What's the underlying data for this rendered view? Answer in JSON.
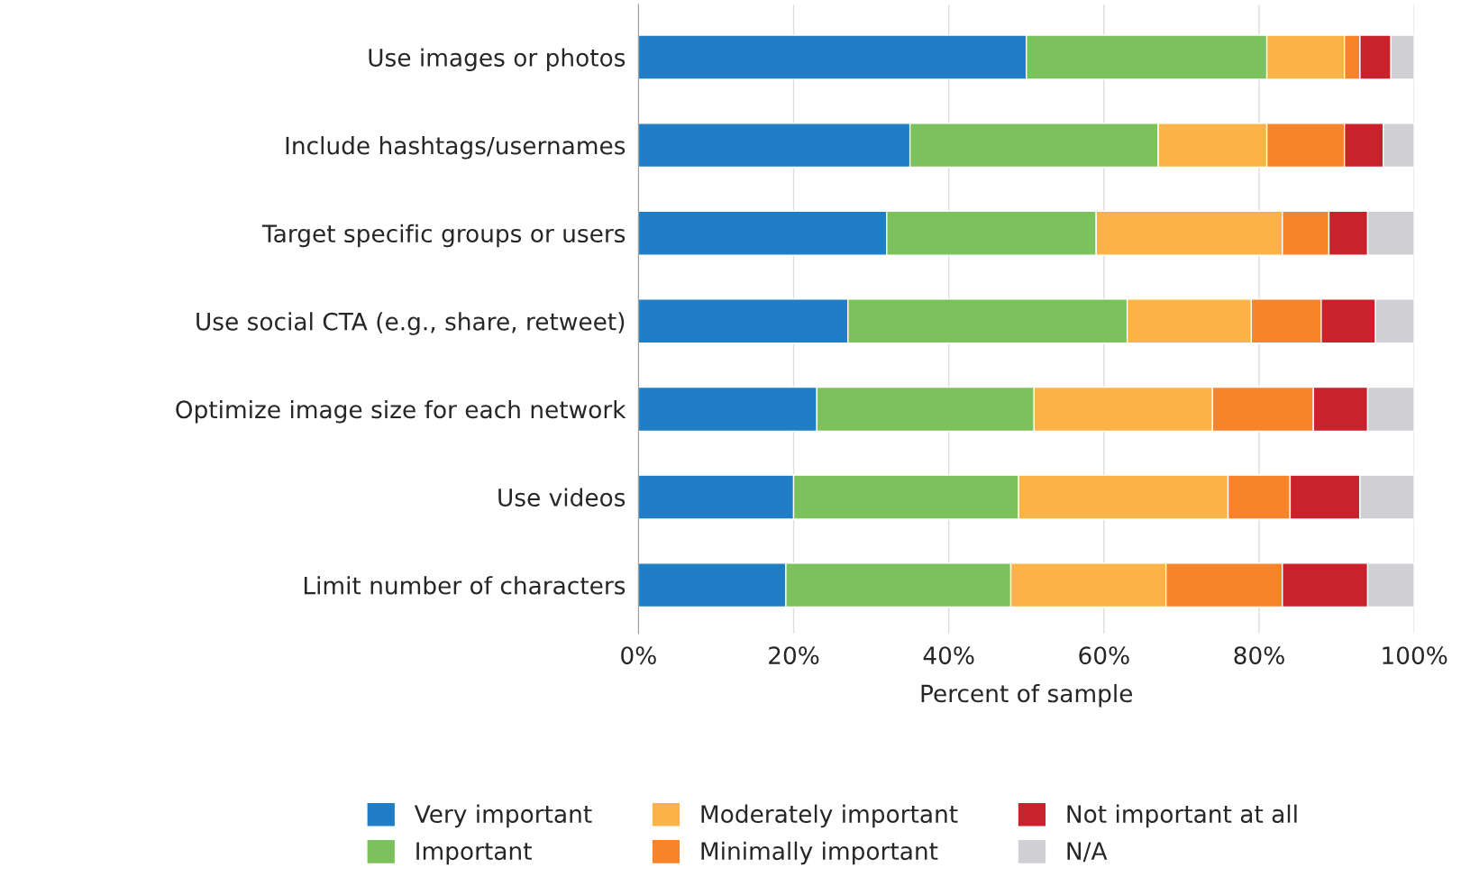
{
  "chart_data": {
    "type": "bar",
    "orientation": "horizontal",
    "stacked": true,
    "categories": [
      "Use images or photos",
      "Include hashtags/usernames",
      "Target specific groups or users",
      "Use social CTA (e.g., share, retweet)",
      "Optimize image size for each network",
      "Use videos",
      "Limit number of characters"
    ],
    "series": [
      {
        "name": "Very important",
        "color": "#1f7ec6",
        "values": [
          50,
          35,
          32,
          27,
          23,
          20,
          19
        ]
      },
      {
        "name": "Important",
        "color": "#7cc25c",
        "values": [
          31,
          32,
          27,
          36,
          28,
          29,
          29
        ]
      },
      {
        "name": "Moderately important",
        "color": "#fbb347",
        "values": [
          10,
          14,
          24,
          16,
          23,
          27,
          20
        ]
      },
      {
        "name": "Minimally important",
        "color": "#f7842a",
        "values": [
          2,
          10,
          6,
          9,
          13,
          8,
          15
        ]
      },
      {
        "name": "Not important at all",
        "color": "#c9222c",
        "values": [
          4,
          5,
          5,
          7,
          7,
          9,
          11
        ]
      },
      {
        "name": "N/A",
        "color": "#d0d0d4",
        "values": [
          3,
          4,
          6,
          5,
          6,
          7,
          6
        ]
      }
    ],
    "xlim": [
      0,
      100
    ],
    "xticks": [
      {
        "value": 0,
        "label": "0%"
      },
      {
        "value": 20,
        "label": "20%"
      },
      {
        "value": 40,
        "label": "40%"
      },
      {
        "value": 60,
        "label": "60%"
      },
      {
        "value": 80,
        "label": "80%"
      },
      {
        "value": 100,
        "label": "100%"
      }
    ],
    "xlabel": "Percent of sample",
    "grid": "x",
    "legend": "bottom"
  }
}
